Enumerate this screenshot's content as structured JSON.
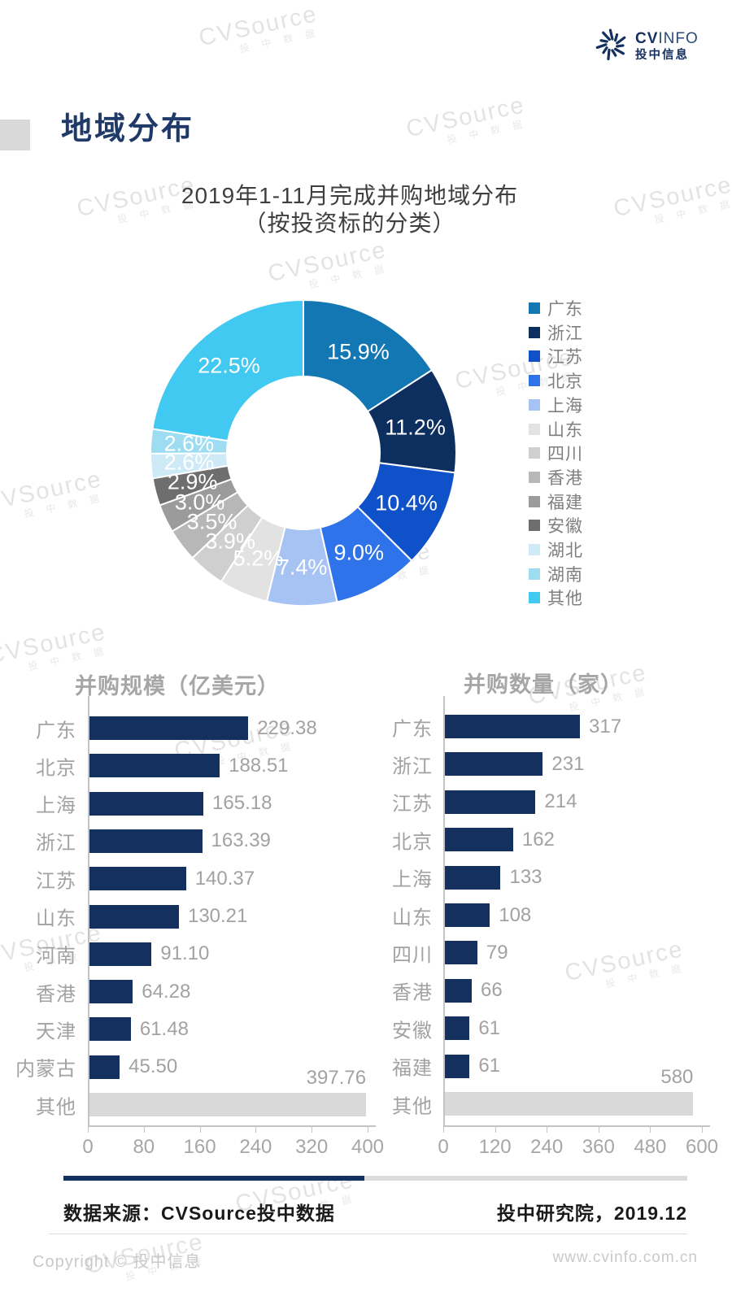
{
  "header": {
    "logo": {
      "cv": "CV",
      "info": "INFO",
      "subtitle": "投中信息"
    }
  },
  "watermark": {
    "text": "CVSource",
    "subtext": "投 中 数 据"
  },
  "section_title": "地域分布",
  "colors": {
    "navy_bar": "#13305f",
    "other_bar": "#d9d9d9",
    "axis_gray": "#c3c3c3",
    "label_gray": "#a2a2a2",
    "title_navy": "#1f3a68",
    "logo_navy": "#14305e"
  },
  "chart_data": [
    {
      "type": "pie",
      "donut": true,
      "title": "2019年1-11月完成并购地域分布",
      "subtitle": "（按投资标的分类）",
      "legend_position": "right",
      "labels": [
        "广东",
        "浙江",
        "江苏",
        "北京",
        "上海",
        "山东",
        "四川",
        "香港",
        "福建",
        "安徽",
        "湖北",
        "湖南",
        "其他"
      ],
      "values": [
        15.9,
        11.2,
        10.4,
        9.0,
        7.4,
        5.2,
        3.9,
        3.5,
        3.0,
        2.9,
        2.6,
        2.6,
        22.5
      ],
      "value_labels": [
        "15.9%",
        "11.2%",
        "10.4%",
        "9.0%",
        "7.4%",
        "5.2%",
        "3.9%",
        "3.5%",
        "3.0%",
        "2.9%",
        "2.6%",
        "2.6%",
        "22.5%"
      ],
      "colors": [
        "#1377b3",
        "#0d2f5f",
        "#0f51c9",
        "#2e73ea",
        "#a6c3f3",
        "#e2e2e2",
        "#cfcfcf",
        "#b7b7b7",
        "#9b9b9b",
        "#6e6e6e",
        "#cdeaf6",
        "#9edcf2",
        "#41c9f1"
      ]
    },
    {
      "type": "bar",
      "orientation": "horizontal",
      "title": "并购规模（亿美元）",
      "categories": [
        "广东",
        "北京",
        "上海",
        "浙江",
        "江苏",
        "山东",
        "河南",
        "香港",
        "天津",
        "内蒙古",
        "其他"
      ],
      "values": [
        229.38,
        188.51,
        165.18,
        163.39,
        140.37,
        130.21,
        91.1,
        64.28,
        61.48,
        45.5,
        397.76
      ],
      "value_labels": [
        "229.38",
        "188.51",
        "165.18",
        "163.39",
        "140.37",
        "130.21",
        "91.10",
        "64.28",
        "61.48",
        "45.50",
        "397.76"
      ],
      "xlim": [
        0,
        400
      ],
      "xticks": [
        "0",
        "80",
        "160",
        "240",
        "320",
        "400"
      ],
      "bar_color": "#13305f",
      "other_bar_color": "#d9d9d9"
    },
    {
      "type": "bar",
      "orientation": "horizontal",
      "title": "并购数量（家）",
      "categories": [
        "广东",
        "浙江",
        "江苏",
        "北京",
        "上海",
        "山东",
        "四川",
        "香港",
        "安徽",
        "福建",
        "其他"
      ],
      "values": [
        317,
        231,
        214,
        162,
        133,
        108,
        79,
        66,
        61,
        61,
        580
      ],
      "value_labels": [
        "317",
        "231",
        "214",
        "162",
        "133",
        "108",
        "79",
        "66",
        "61",
        "61",
        "580"
      ],
      "xlim": [
        0,
        600
      ],
      "xticks": [
        "0",
        "120",
        "240",
        "360",
        "480",
        "600"
      ],
      "bar_color": "#13305f",
      "other_bar_color": "#d9d9d9"
    }
  ],
  "footer": {
    "source": "数据来源：CVSource投中数据",
    "publisher": "投中研究院，2019.12",
    "copyright": "Copyright © 投中信息",
    "website": "www.cvinfo.com.cn"
  }
}
